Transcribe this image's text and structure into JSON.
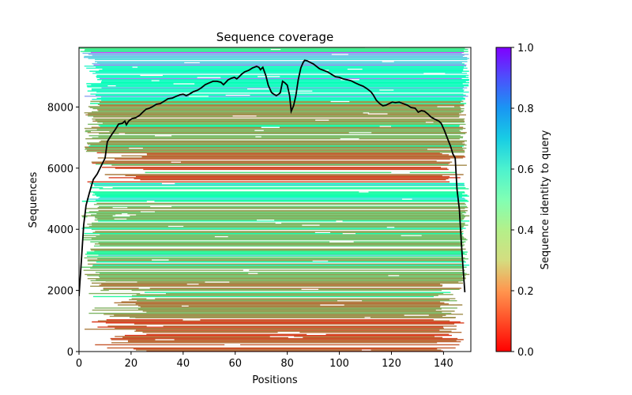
{
  "chart_data": {
    "type": "heatmap",
    "title": "Sequence coverage",
    "xlabel": "Positions",
    "ylabel": "Sequences",
    "xlim": [
      0,
      150.5
    ],
    "ylim": [
      0,
      9950
    ],
    "xticks": [
      0,
      20,
      40,
      60,
      80,
      100,
      120,
      140
    ],
    "yticks": [
      0,
      2000,
      4000,
      6000,
      8000
    ],
    "xtick_labels": [
      "0",
      "20",
      "40",
      "60",
      "80",
      "100",
      "120",
      "140"
    ],
    "ytick_labels": [
      "0",
      "2000",
      "4000",
      "6000",
      "8000"
    ],
    "grid": false,
    "colorbar": {
      "label": "Sequence identity to query",
      "cmap": "rainbow_r",
      "range": [
        0.0,
        1.0
      ],
      "ticks": [
        0.0,
        0.2,
        0.4,
        0.6,
        0.8,
        1.0
      ],
      "tick_labels": [
        "0.0",
        "0.2",
        "0.4",
        "0.6",
        "0.8",
        "1.0"
      ],
      "placement": "right"
    },
    "heatmap_bands": [
      {
        "from": 0,
        "to": 1100,
        "identity": 0.12,
        "start": 2,
        "end": 148,
        "fill": 0.72
      },
      {
        "from": 1100,
        "to": 2300,
        "identity": 0.2,
        "start": 3,
        "end": 148,
        "fill": 0.8
      },
      {
        "from": 2300,
        "to": 3100,
        "identity": 0.25,
        "start": 1,
        "end": 150,
        "fill": 0.86
      },
      {
        "from": 3100,
        "to": 3300,
        "identity": 0.42,
        "start": 1,
        "end": 150,
        "fill": 0.9
      },
      {
        "from": 3300,
        "to": 4900,
        "identity": 0.26,
        "start": 1,
        "end": 150,
        "fill": 0.88
      },
      {
        "from": 4900,
        "to": 5500,
        "identity": 0.45,
        "start": 1,
        "end": 150,
        "fill": 0.93
      },
      {
        "from": 5500,
        "to": 6500,
        "identity": 0.13,
        "start": 3,
        "end": 149,
        "fill": 0.82
      },
      {
        "from": 6500,
        "to": 8200,
        "identity": 0.22,
        "start": 2,
        "end": 149,
        "fill": 0.9
      },
      {
        "from": 8200,
        "to": 9400,
        "identity": 0.55,
        "start": 2,
        "end": 150,
        "fill": 0.92
      },
      {
        "from": 9400,
        "to": 9800,
        "identity": 0.7,
        "start": 1,
        "end": 150,
        "fill": 0.95
      },
      {
        "from": 9800,
        "to": 9950,
        "identity": 0.4,
        "start": 0,
        "end": 150,
        "fill": 1.0
      }
    ],
    "series": [
      {
        "name": "coverage",
        "color": "#000000",
        "x": [
          0,
          0.9,
          1.8,
          2.7,
          3.9,
          5.5,
          7,
          8.5,
          10,
          10.9,
          12.4,
          13.9,
          15.2,
          16.7,
          17.6,
          18.2,
          19.1,
          20.3,
          21.8,
          23.3,
          24.5,
          25.8,
          27,
          28.2,
          29.7,
          31.2,
          32.7,
          34.2,
          35.8,
          37.3,
          38.8,
          40,
          41.2,
          42.4,
          43.9,
          45.5,
          47,
          48.5,
          50,
          51.5,
          53,
          54.5,
          55.5,
          56.4,
          57.3,
          58.5,
          59.7,
          60.6,
          61.5,
          62.4,
          63.6,
          65.2,
          66.7,
          68.2,
          69.1,
          69.7,
          70.6,
          71.8,
          72.7,
          73.9,
          74.8,
          75.8,
          76.7,
          77.3,
          78.2,
          79.1,
          80,
          80.9,
          81.5,
          82.4,
          83.3,
          84.2,
          85.2,
          86.1,
          86.7,
          87.6,
          88.8,
          90,
          91.2,
          92.4,
          93.9,
          95.5,
          97,
          98.5,
          100,
          101.5,
          103,
          104.5,
          106.1,
          107.6,
          109.1,
          110.6,
          112.1,
          113,
          114.2,
          115.5,
          116.7,
          117.9,
          119.1,
          120.3,
          121.5,
          123,
          124.5,
          126.1,
          127.6,
          129.1,
          130.3,
          131.5,
          132.7,
          133.9,
          135.2,
          136.7,
          138.2,
          139.1,
          140.3,
          141.5,
          142.7,
          143.6,
          144.5,
          145.2,
          146.1,
          146.7,
          147.3,
          148.2
        ],
        "y": [
          1810,
          2970,
          4130,
          4780,
          5170,
          5630,
          5810,
          6070,
          6330,
          6870,
          7080,
          7260,
          7440,
          7470,
          7540,
          7420,
          7540,
          7620,
          7650,
          7730,
          7830,
          7930,
          7960,
          8010,
          8090,
          8110,
          8190,
          8270,
          8290,
          8350,
          8400,
          8420,
          8370,
          8420,
          8500,
          8550,
          8630,
          8730,
          8790,
          8840,
          8840,
          8810,
          8730,
          8810,
          8890,
          8940,
          8970,
          8920,
          8990,
          9070,
          9150,
          9200,
          9280,
          9330,
          9300,
          9220,
          9300,
          9020,
          8710,
          8480,
          8420,
          8370,
          8420,
          8470,
          8840,
          8790,
          8710,
          8370,
          7860,
          8040,
          8370,
          8890,
          9280,
          9460,
          9530,
          9510,
          9460,
          9410,
          9330,
          9250,
          9200,
          9150,
          9070,
          8990,
          8970,
          8920,
          8890,
          8860,
          8790,
          8730,
          8680,
          8600,
          8500,
          8400,
          8220,
          8110,
          8040,
          8060,
          8110,
          8160,
          8140,
          8160,
          8110,
          8060,
          7980,
          7960,
          7830,
          7880,
          7860,
          7780,
          7670,
          7600,
          7540,
          7470,
          7240,
          6980,
          6720,
          6460,
          6330,
          5300,
          4650,
          3750,
          2970,
          1940
        ]
      }
    ]
  }
}
